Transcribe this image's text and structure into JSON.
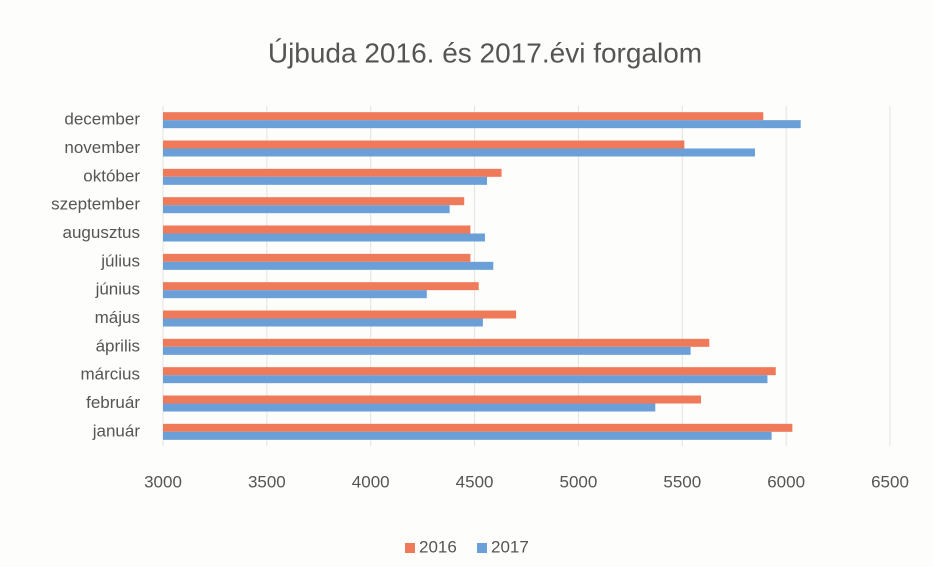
{
  "chart_data": {
    "type": "barh",
    "title": "Újbuda 2016. és 2017.évi forgalom",
    "categories": [
      "január",
      "február",
      "március",
      "április",
      "május",
      "június",
      "július",
      "augusztus",
      "szeptember",
      "október",
      "november",
      "december"
    ],
    "series": [
      {
        "name": "2016",
        "color": "#ee7a5a",
        "values": [
          6030,
          5590,
          5950,
          5630,
          4700,
          4520,
          4480,
          4480,
          4450,
          4630,
          5510,
          5890
        ]
      },
      {
        "name": "2017",
        "color": "#6a9fd8",
        "values": [
          5930,
          5370,
          5910,
          5540,
          4540,
          4270,
          4590,
          4550,
          4380,
          4560,
          5850,
          6070
        ]
      }
    ],
    "xlim": [
      3000,
      6500
    ],
    "xticks": [
      3000,
      3500,
      4000,
      4500,
      5000,
      5500,
      6000,
      6500
    ],
    "grid": true,
    "legend": "bottom"
  }
}
